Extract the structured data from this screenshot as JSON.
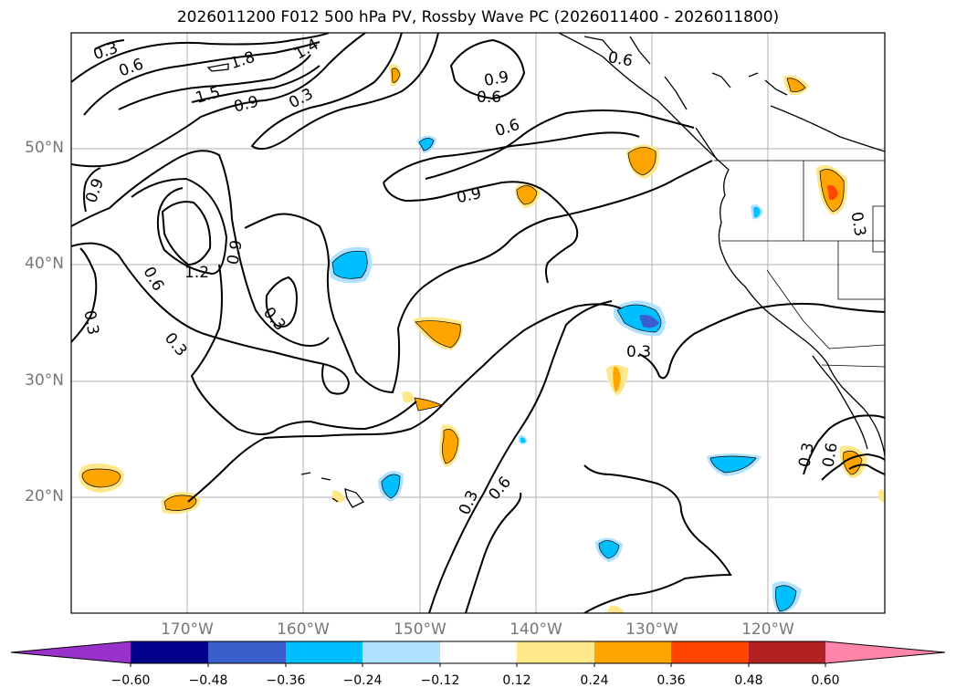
{
  "title": "2026011200 F012 500 hPa PV, Rossby Wave PC (2026011400 - 2026011800)",
  "map": {
    "lat_labels": [
      "50°N",
      "40°N",
      "30°N",
      "20°N"
    ],
    "lon_labels": [
      "170°W",
      "160°W",
      "150°W",
      "140°W",
      "130°W",
      "120°W"
    ],
    "contour_labels": [
      "0.3",
      "0.6",
      "1.8",
      "1.4",
      "1.5",
      "0.9",
      "0.3",
      "0.9",
      "0.6",
      "0.6",
      "0.9",
      "1.2",
      "0.9",
      "0.6",
      "0.3",
      "0.3",
      "0.3",
      "0.3",
      "0.3",
      "0.6",
      "0.3",
      "0.6",
      "0.9",
      "0.6",
      "0.3"
    ]
  },
  "colorbar": {
    "ticks": [
      "−0.60",
      "−0.48",
      "−0.36",
      "−0.24",
      "−0.12",
      "0.12",
      "0.24",
      "0.36",
      "0.48",
      "0.60"
    ],
    "colors": [
      "#9932cc",
      "#00008b",
      "#3a5fcd",
      "#00bfff",
      "#b0e2ff",
      "#ffffff",
      "#ffe88a",
      "#ffa500",
      "#ff4500",
      "#b22222",
      "#ff86a8"
    ]
  }
}
